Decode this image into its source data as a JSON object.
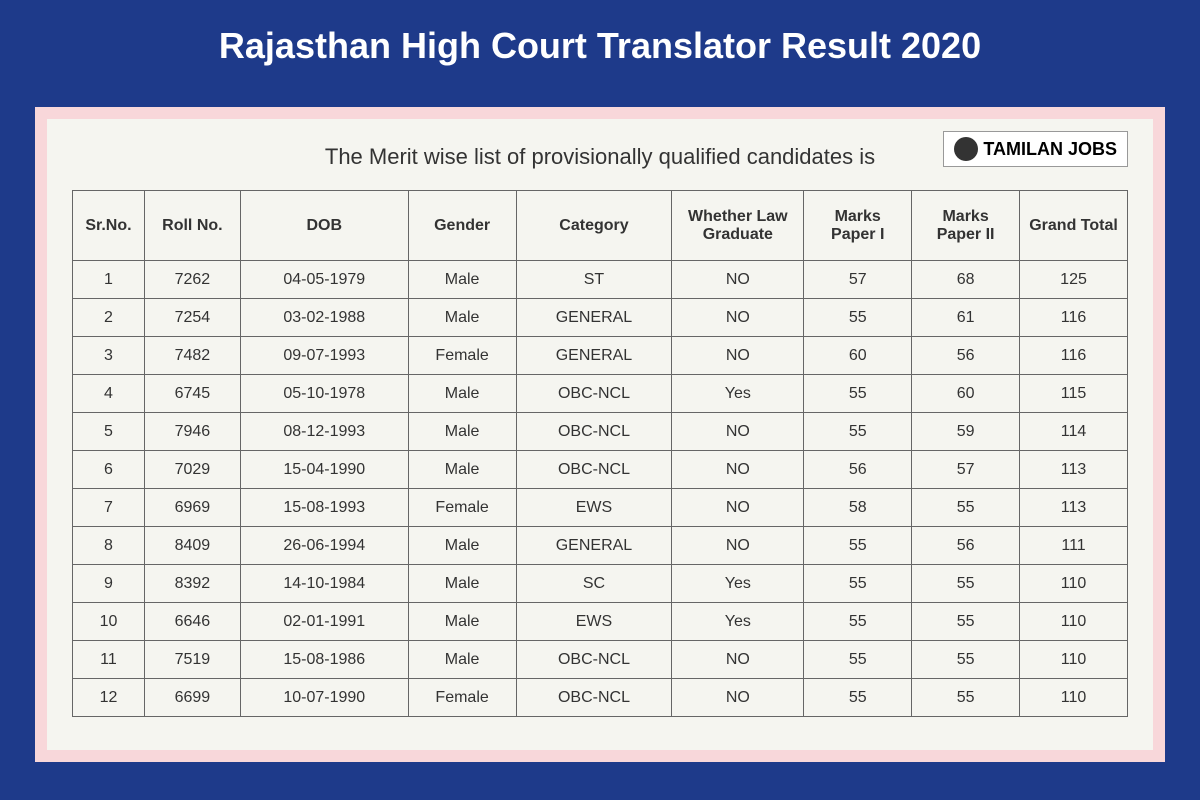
{
  "title": "Rajasthan High Court Translator Result 2020",
  "subtitle": "The Merit wise list of provisionally qualified candidates is",
  "watermark": "TAMILAN JOBS",
  "colors": {
    "header_bg": "#1e3a8a",
    "title_text": "#ffffff",
    "content_border": "#f8d7da",
    "table_bg": "#f5f5f0",
    "border": "#666666",
    "text": "#333333"
  },
  "table": {
    "columns": [
      "Sr.No.",
      "Roll No.",
      "DOB",
      "Gender",
      "Category",
      "Whether Law Graduate",
      "Marks Paper I",
      "Marks Paper II",
      "Grand Total"
    ],
    "rows": [
      [
        "1",
        "7262",
        "04-05-1979",
        "Male",
        "ST",
        "NO",
        "57",
        "68",
        "125"
      ],
      [
        "2",
        "7254",
        "03-02-1988",
        "Male",
        "GENERAL",
        "NO",
        "55",
        "61",
        "116"
      ],
      [
        "3",
        "7482",
        "09-07-1993",
        "Female",
        "GENERAL",
        "NO",
        "60",
        "56",
        "116"
      ],
      [
        "4",
        "6745",
        "05-10-1978",
        "Male",
        "OBC-NCL",
        "Yes",
        "55",
        "60",
        "115"
      ],
      [
        "5",
        "7946",
        "08-12-1993",
        "Male",
        "OBC-NCL",
        "NO",
        "55",
        "59",
        "114"
      ],
      [
        "6",
        "7029",
        "15-04-1990",
        "Male",
        "OBC-NCL",
        "NO",
        "56",
        "57",
        "113"
      ],
      [
        "7",
        "6969",
        "15-08-1993",
        "Female",
        "EWS",
        "NO",
        "58",
        "55",
        "113"
      ],
      [
        "8",
        "8409",
        "26-06-1994",
        "Male",
        "GENERAL",
        "NO",
        "55",
        "56",
        "111"
      ],
      [
        "9",
        "8392",
        "14-10-1984",
        "Male",
        "SC",
        "Yes",
        "55",
        "55",
        "110"
      ],
      [
        "10",
        "6646",
        "02-01-1991",
        "Male",
        "EWS",
        "Yes",
        "55",
        "55",
        "110"
      ],
      [
        "11",
        "7519",
        "15-08-1986",
        "Male",
        "OBC-NCL",
        "NO",
        "55",
        "55",
        "110"
      ],
      [
        "12",
        "6699",
        "10-07-1990",
        "Female",
        "OBC-NCL",
        "NO",
        "55",
        "55",
        "110"
      ]
    ]
  }
}
